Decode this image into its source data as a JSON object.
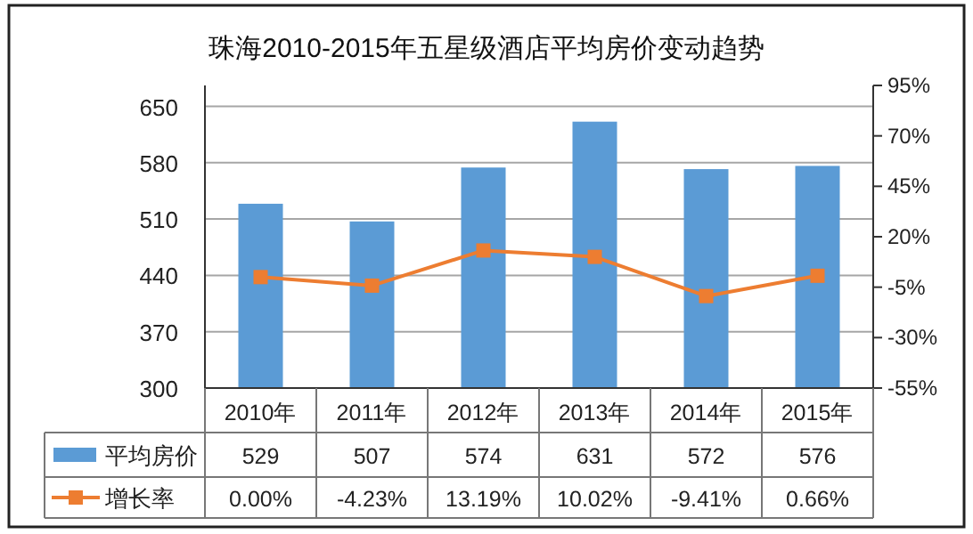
{
  "chart_data": {
    "type": "bar",
    "title": "珠海2010-2015年五星级酒店平均房价变动趋势",
    "categories": [
      "2010年",
      "2011年",
      "2012年",
      "2013年",
      "2014年",
      "2015年"
    ],
    "series": [
      {
        "name": "平均房价",
        "color": "#5b9bd5",
        "values": [
          529,
          507,
          574,
          631,
          572,
          576
        ],
        "value_labels": [
          "529",
          "507",
          "574",
          "631",
          "572",
          "576"
        ]
      },
      {
        "name": "增长率",
        "type": "line",
        "axis": "y2",
        "color": "#ed7d31",
        "marker": "square",
        "values": [
          0.0,
          -4.23,
          13.19,
          10.02,
          -9.41,
          0.66
        ],
        "value_labels": [
          "0.00%",
          "-4.23%",
          "13.19%",
          "10.02%",
          "-9.41%",
          "0.66%"
        ]
      }
    ],
    "ylim": [
      300,
      676
    ],
    "yticks": [
      300,
      370,
      440,
      510,
      580,
      650
    ],
    "y2lim": [
      -55,
      95
    ],
    "y2ticks": [
      {
        "value": -55,
        "label": "-55%"
      },
      {
        "value": -30,
        "label": "-30%"
      },
      {
        "value": -5,
        "label": "-5%"
      },
      {
        "value": 20,
        "label": "20%"
      },
      {
        "value": 45,
        "label": "45%"
      },
      {
        "value": 70,
        "label": "70%"
      },
      {
        "value": 95,
        "label": "95%"
      }
    ],
    "grid": "y",
    "legend": "bottom left"
  }
}
